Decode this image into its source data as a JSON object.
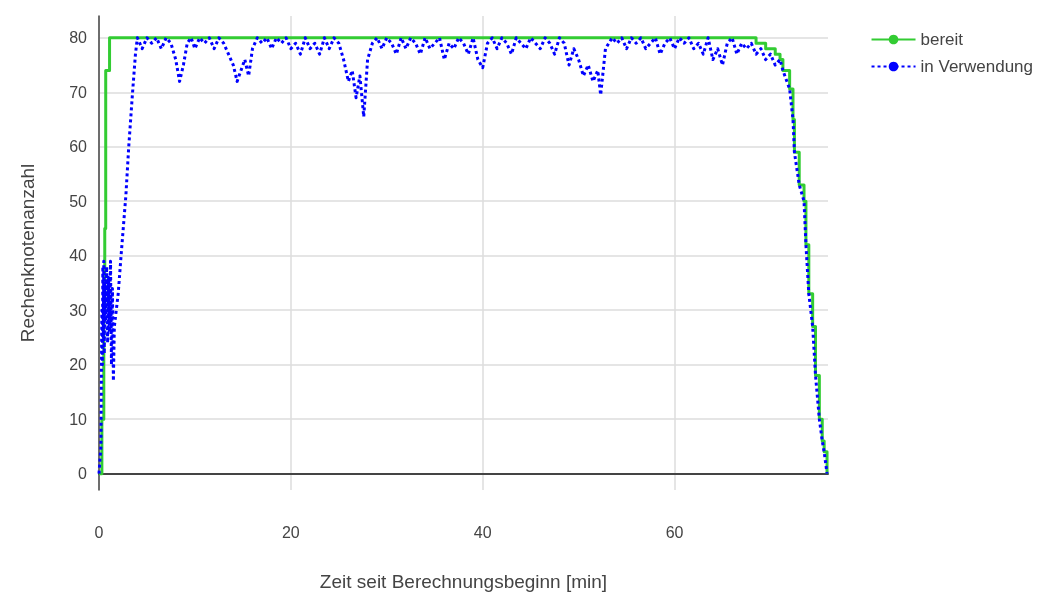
{
  "chart_data": {
    "type": "line",
    "xlabel": "Zeit seit Berechnungsbeginn [min]",
    "ylabel": "Rechenknotenanzahl",
    "xlim": [
      0,
      76
    ],
    "ylim": [
      -3,
      84
    ],
    "xticks": [
      0,
      20,
      40,
      60
    ],
    "yticks": [
      0,
      10,
      20,
      30,
      40,
      50,
      60,
      70,
      80
    ],
    "grid": true,
    "legend": "top right",
    "marker": "none",
    "series": [
      {
        "name": "bereit",
        "type": "step",
        "color": "#33cc33",
        "line_style": "solid",
        "x": [
          0,
          0.3,
          0.5,
          0.6,
          0.7,
          1.1,
          68.5,
          69.5,
          70.5,
          71,
          71.3,
          72,
          72.35,
          72.5,
          73,
          73.5,
          73.7,
          74,
          74.4,
          74.7,
          75.1,
          75.4,
          75.6,
          75.9
        ],
        "values": [
          0,
          10,
          30,
          45,
          74,
          80,
          79,
          78,
          77,
          76,
          74,
          70.6,
          65,
          59,
          53,
          50,
          42,
          33,
          27,
          18,
          10,
          6,
          4,
          0
        ]
      },
      {
        "name": "in Verwendung",
        "type": "line",
        "color": "#0000ff",
        "line_style": "dotted",
        "x": [
          0,
          0.2,
          0.3,
          0.35,
          0.4,
          0.45,
          0.5,
          0.55,
          0.6,
          0.7,
          0.8,
          0.9,
          1.0,
          1.1,
          1.2,
          1.3,
          1.4,
          1.5,
          1.6,
          2.0,
          2.3,
          2.8,
          3.1,
          3.5,
          3.8,
          4.0,
          4.5,
          5,
          5.5,
          6,
          6.5,
          7,
          7.5,
          8,
          8.4,
          8.8,
          9.2,
          9.6,
          10,
          10.5,
          11,
          11.5,
          12,
          12.5,
          13,
          13.5,
          14,
          14.4,
          14.8,
          15.2,
          15.6,
          16,
          16.5,
          17,
          17.5,
          18,
          18.5,
          19,
          19.5,
          20,
          20.5,
          21,
          21.5,
          22,
          22.5,
          23,
          23.5,
          24,
          24.5,
          25,
          25.5,
          26,
          26.4,
          26.8,
          27.2,
          27.6,
          28,
          28.5,
          29,
          29.5,
          30,
          30.5,
          31,
          31.5,
          32,
          32.5,
          33,
          33.5,
          34,
          34.5,
          35,
          35.5,
          36,
          36.5,
          37,
          37.5,
          38,
          38.5,
          39,
          39.5,
          40,
          40.5,
          41,
          41.5,
          42,
          42.5,
          43,
          43.5,
          44,
          44.5,
          45,
          45.5,
          46,
          46.5,
          47,
          47.5,
          48,
          48.5,
          49,
          49.5,
          50,
          50.5,
          51,
          51.5,
          52,
          52.3,
          52.8,
          53.5,
          54,
          54.5,
          55,
          55.5,
          56,
          56.5,
          57,
          57.5,
          58,
          58.5,
          59,
          59.5,
          60,
          60.5,
          61,
          61.5,
          62,
          62.5,
          63,
          63.5,
          64,
          64.5,
          65,
          65.5,
          66,
          66.5,
          67,
          67.5,
          68,
          68.5,
          69,
          69.5,
          70,
          70.5,
          71,
          71.3,
          72,
          72.35,
          72.5,
          73,
          73.5,
          73.7,
          74,
          74.4,
          74.7,
          75.1,
          75.4,
          75.6,
          75.9
        ],
        "values": [
          0,
          5,
          30,
          20,
          38,
          25,
          39,
          22,
          35,
          28,
          38,
          24,
          36,
          26,
          39,
          20,
          34,
          17,
          27,
          33,
          40,
          51,
          60,
          70,
          77,
          80,
          78,
          80,
          79,
          80,
          78,
          80,
          79,
          76,
          72,
          75,
          79,
          80,
          78,
          80,
          79,
          80,
          78,
          80,
          79,
          77,
          75,
          72,
          74,
          76,
          73,
          78,
          80,
          79,
          80,
          78,
          80,
          79,
          80,
          78,
          79,
          77,
          80,
          78,
          79,
          77,
          80,
          78,
          80,
          79,
          76,
          72,
          74,
          69,
          73,
          65.5,
          76,
          79,
          80,
          78,
          80,
          79,
          77,
          80,
          78,
          80,
          79,
          77,
          80,
          78,
          79,
          80,
          76,
          79,
          78,
          80,
          79,
          77,
          80,
          76,
          74.5,
          79,
          80,
          78,
          80,
          79,
          77,
          80,
          79,
          78,
          80,
          79,
          78,
          80,
          79,
          77,
          80,
          79,
          75,
          78,
          76,
          73,
          75,
          72,
          74,
          69.5,
          78,
          80,
          79,
          80,
          78,
          80,
          79,
          80,
          78,
          79,
          80,
          77,
          79,
          80,
          78,
          80,
          79,
          80,
          78,
          79,
          77,
          80,
          76,
          78,
          75,
          79,
          80,
          77,
          79,
          78,
          79,
          77,
          78,
          76,
          77,
          75,
          76,
          74,
          70.6,
          65,
          59,
          53,
          50,
          42,
          33,
          27,
          18,
          10,
          6,
          4,
          0
        ]
      }
    ]
  }
}
